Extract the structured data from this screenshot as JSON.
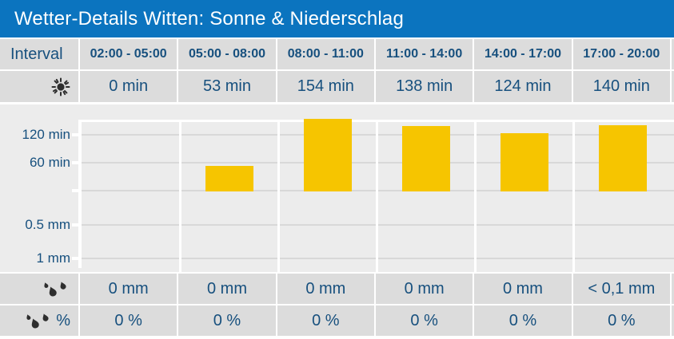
{
  "title": "Wetter-Details Witten: Sonne & Niederschlag",
  "colors": {
    "header_bg": "#0B74BF",
    "row_bg": "#DCDCDC",
    "chart_bg": "#ECECEC",
    "text_navy": "#17507E",
    "bar_yellow": "#F6C500",
    "gridline": "#D8D8D8",
    "separator": "#FFFFFF",
    "icon_dark": "#2E2E2E",
    "title_text": "#FFFFFF"
  },
  "interval_row": {
    "label": "Interval",
    "cells": [
      "02:00 - 05:00",
      "05:00 - 08:00",
      "08:00 - 11:00",
      "11:00 - 14:00",
      "14:00 - 17:00",
      "17:00 - 20:00"
    ]
  },
  "sun_row": {
    "icon": "sun-icon",
    "cells": [
      "0 min",
      "53 min",
      "154 min",
      "138 min",
      "124 min",
      "140 min"
    ]
  },
  "precip_row": {
    "icon": "raindrops-icon",
    "cells": [
      "0 mm",
      "0 mm",
      "0 mm",
      "0 mm",
      "0 mm",
      "< 0,1 mm"
    ]
  },
  "probability_row": {
    "icon": "raindrops-icon",
    "suffix": "%",
    "cells": [
      "0 %",
      "0 %",
      "0 %",
      "0 %",
      "0 %",
      "0 %"
    ]
  },
  "chart_data": {
    "type": "bar",
    "categories": [
      "02:00 - 05:00",
      "05:00 - 08:00",
      "08:00 - 11:00",
      "11:00 - 14:00",
      "14:00 - 17:00",
      "17:00 - 20:00"
    ],
    "series": [
      {
        "name": "Sonnenschein",
        "unit": "min",
        "values": [
          0,
          53,
          154,
          138,
          124,
          140
        ]
      },
      {
        "name": "Niederschlag",
        "unit": "mm",
        "values": [
          0,
          0,
          0,
          0,
          0,
          0.05
        ],
        "display": [
          "0 mm",
          "0 mm",
          "0 mm",
          "0 mm",
          "0 mm",
          "< 0,1 mm"
        ]
      },
      {
        "name": "Niederschlagswahrscheinlichkeit",
        "unit": "%",
        "values": [
          0,
          0,
          0,
          0,
          0,
          0
        ]
      }
    ],
    "y_ticks": [
      {
        "label": "120 min",
        "axis": "min",
        "value": 120
      },
      {
        "label": "60 min",
        "axis": "min",
        "value": 60
      },
      {
        "label": "0.5 mm",
        "axis": "mm",
        "value": 0.5
      },
      {
        "label": "1 mm",
        "axis": "mm",
        "value": 1
      }
    ],
    "ylim_min_axis": [
      0,
      150
    ],
    "ylim_mm_axis": [
      0,
      1.2
    ],
    "grid": true,
    "legend": false,
    "bar_color": "#F6C500"
  }
}
